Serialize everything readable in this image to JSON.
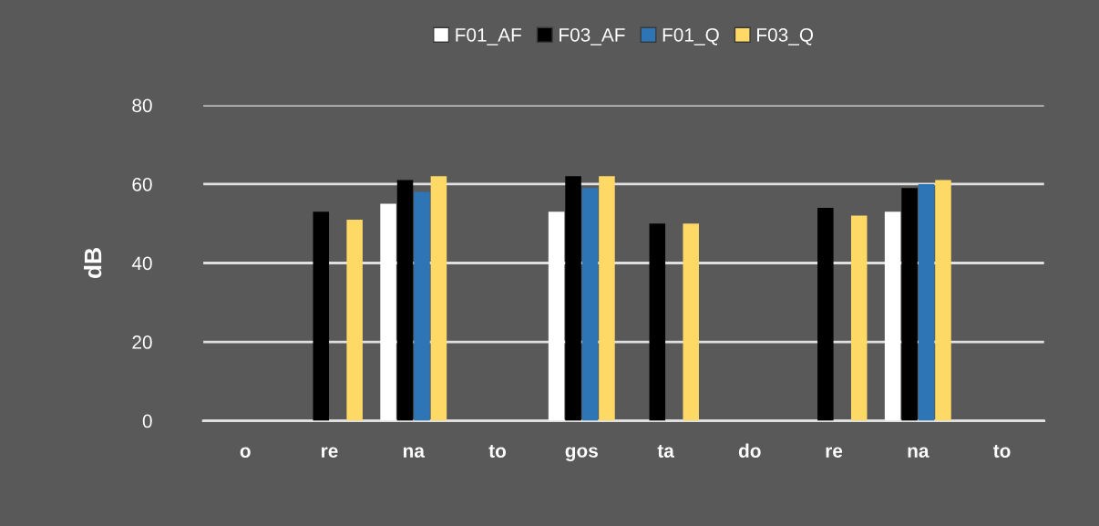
{
  "chart_data": {
    "type": "bar",
    "ylabel": "dB",
    "categories": [
      "o",
      "re",
      "na",
      "to",
      "gos",
      "ta",
      "do",
      "re",
      "na",
      "to"
    ],
    "series": [
      {
        "name": "F01_AF",
        "color": "#ffffff",
        "values": [
          0,
          0,
          55,
          0,
          53,
          0,
          0,
          0,
          53,
          0
        ]
      },
      {
        "name": "F03_AF",
        "color": "#000000",
        "values": [
          0,
          53,
          61,
          0,
          62,
          50,
          0,
          54,
          59,
          0
        ]
      },
      {
        "name": "F01_Q",
        "color": "#2e75b6",
        "values": [
          0,
          0,
          58,
          0,
          59,
          0,
          0,
          0,
          60,
          0
        ]
      },
      {
        "name": "F03_Q",
        "color": "#ffd966",
        "values": [
          0,
          51,
          62,
          0,
          62,
          50,
          0,
          52,
          61,
          0
        ]
      }
    ],
    "ylim": [
      0,
      80
    ],
    "yticks": [
      0,
      20,
      40,
      60,
      80
    ],
    "grid": "y",
    "legend": "top"
  }
}
